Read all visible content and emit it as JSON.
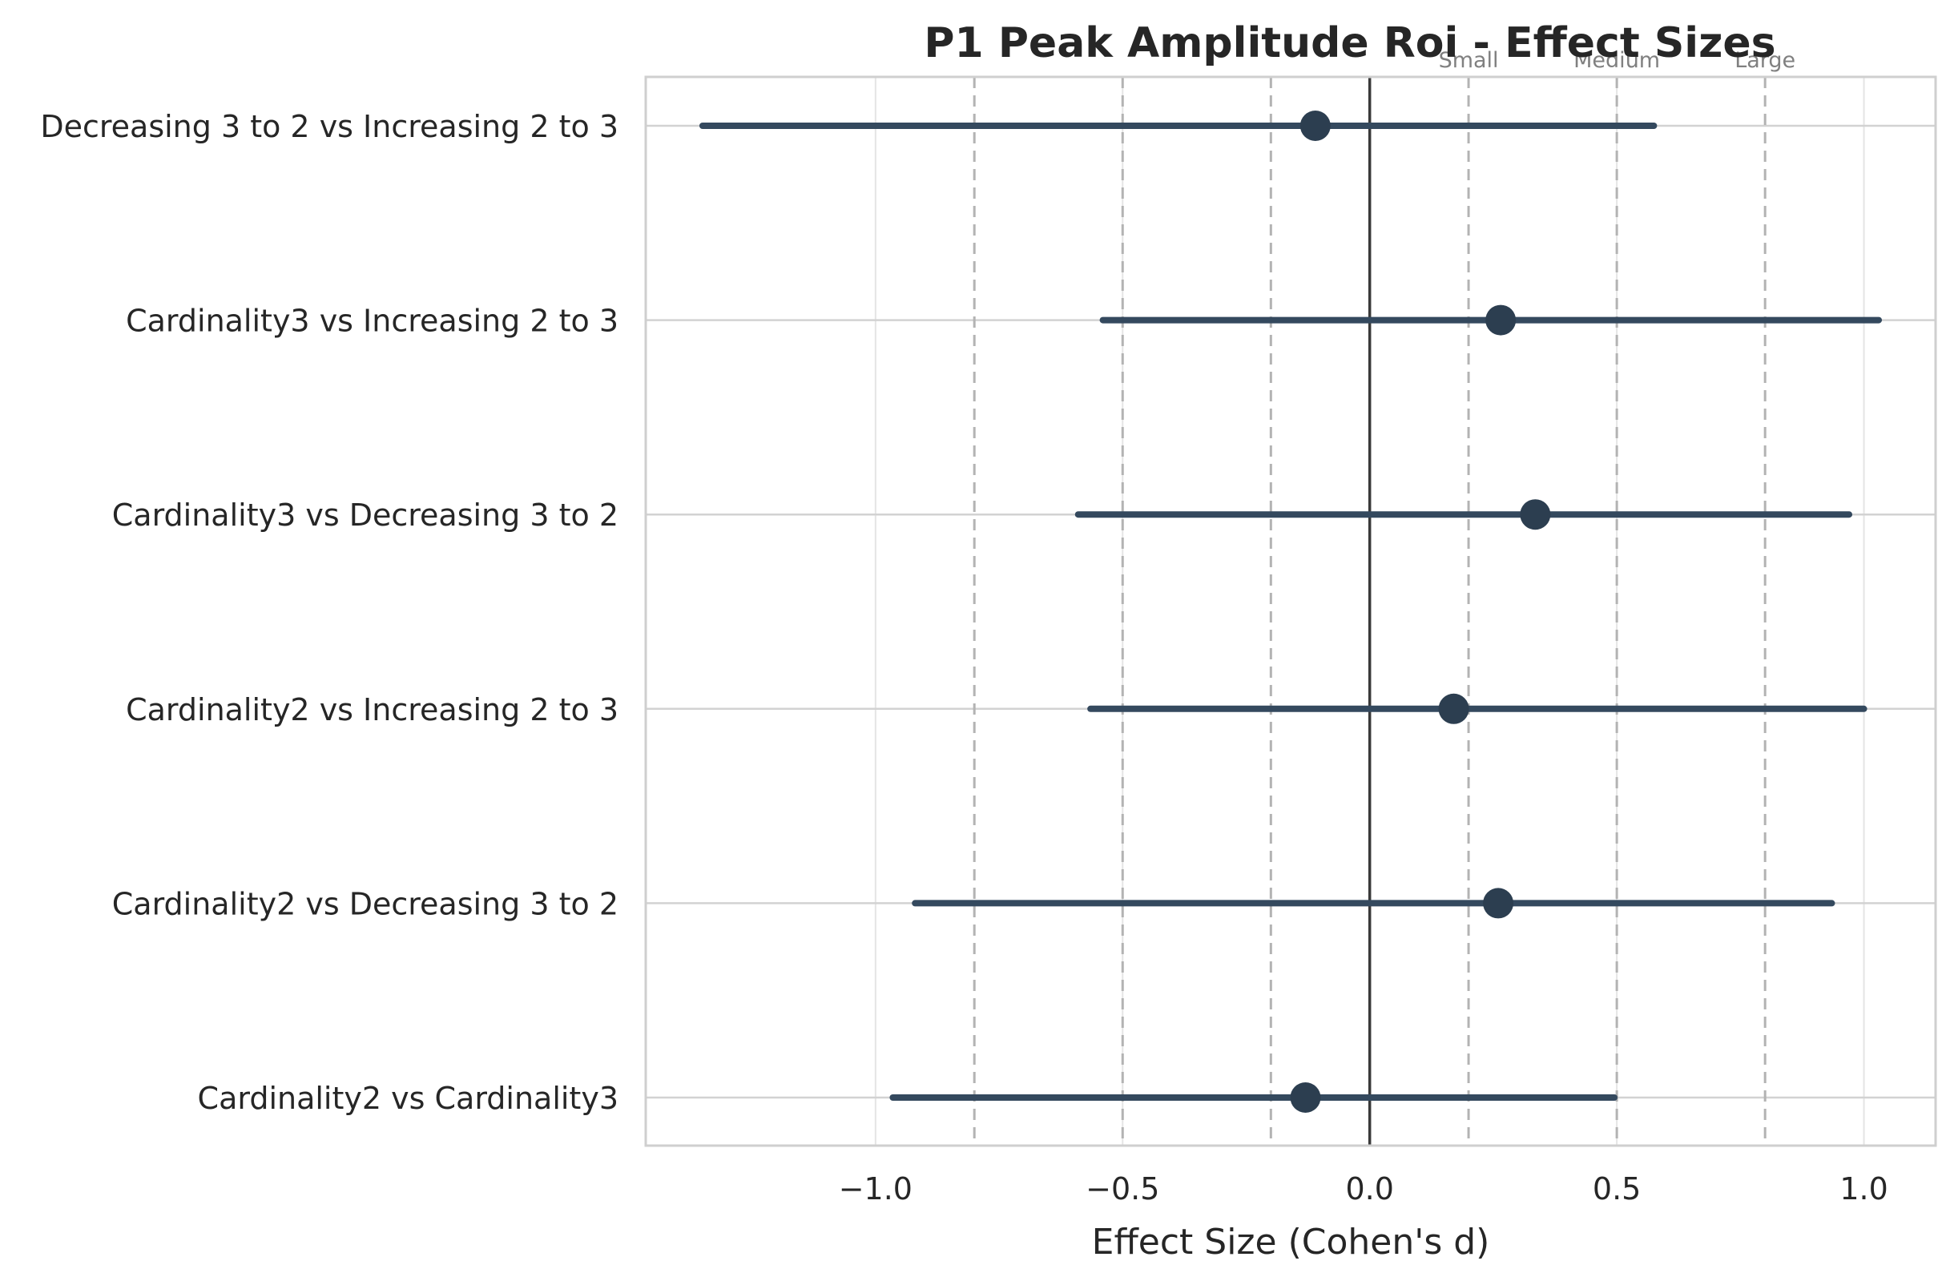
{
  "chart_data": {
    "type": "forest",
    "title": "P1 Peak Amplitude Roi - Effect Sizes",
    "xlabel": "Effect Size (Cohen's d)",
    "ylabel": "",
    "xlim": [
      -1.465,
      1.145
    ],
    "xticks": [
      -1.0,
      -0.5,
      0.0,
      0.5,
      1.0
    ],
    "xtick_labels": [
      "−1.0",
      "−0.5",
      "0.0",
      "0.5",
      "1.0"
    ],
    "reference_lines": [
      {
        "value": -0.8,
        "style": "dashed"
      },
      {
        "value": -0.5,
        "style": "dashed"
      },
      {
        "value": -0.2,
        "style": "dashed"
      },
      {
        "value": 0.2,
        "style": "dashed",
        "label": "Small"
      },
      {
        "value": 0.5,
        "style": "dashed",
        "label": "Medium"
      },
      {
        "value": 0.8,
        "style": "dashed",
        "label": "Large"
      }
    ],
    "zero_line": 0.0,
    "grid": true,
    "comparisons": [
      {
        "label": "Decreasing 3 to 2 vs Increasing 2 to 3",
        "d": -0.11,
        "ci": [
          -1.35,
          0.575
        ]
      },
      {
        "label": "Cardinality3 vs Increasing 2 to 3",
        "d": 0.265,
        "ci": [
          -0.54,
          1.03
        ]
      },
      {
        "label": "Cardinality3 vs Decreasing 3 to 2",
        "d": 0.335,
        "ci": [
          -0.59,
          0.97
        ]
      },
      {
        "label": "Cardinality2 vs Increasing 2 to 3",
        "d": 0.17,
        "ci": [
          -0.565,
          1.0
        ]
      },
      {
        "label": "Cardinality2 vs Decreasing 3 to 2",
        "d": 0.26,
        "ci": [
          -0.92,
          0.935
        ]
      },
      {
        "label": "Cardinality2 vs Cardinality3",
        "d": -0.13,
        "ci": [
          -0.965,
          0.495
        ]
      }
    ],
    "colors": {
      "marker": "#2c3e50",
      "interval": "#34495e",
      "zero_line": "#3a3a3a",
      "reference": "#b3b3b3",
      "grid": "#e5e5e5",
      "text": "#262626",
      "muted_text": "#808080",
      "axes": "#cfcfcf"
    }
  }
}
